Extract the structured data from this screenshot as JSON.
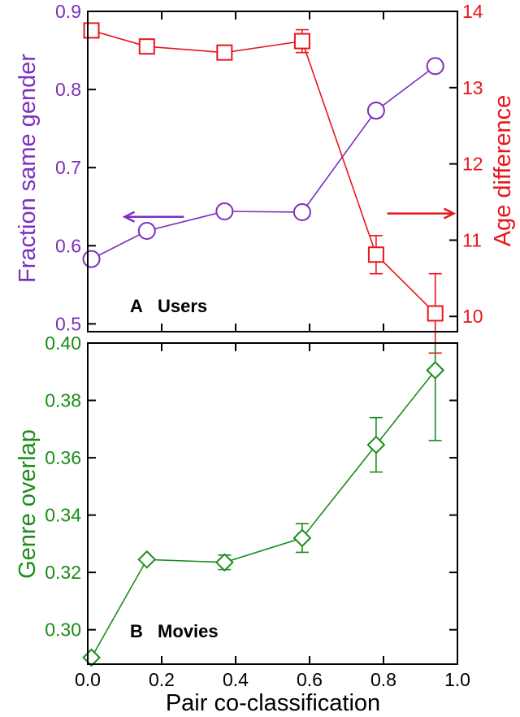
{
  "chart_data": [
    {
      "panel_id": "A",
      "type": "line",
      "panel_label": "A",
      "panel_title": "Users",
      "xlabel": "",
      "xlim": [
        0,
        1
      ],
      "xticks": [
        0.0,
        0.2,
        0.4,
        0.6,
        0.8,
        1.0
      ],
      "grid": false,
      "left_axis": {
        "label": "Fraction same gender",
        "ylim": [
          0.49,
          0.9
        ],
        "ticks": [
          "0.5",
          "0.6",
          "0.7",
          "0.8",
          "0.9"
        ],
        "color": "#7b2fbe"
      },
      "right_axis": {
        "label": "Age difference",
        "ylim": [
          9.8,
          14.0
        ],
        "ticks": [
          "10",
          "11",
          "12",
          "13",
          "14"
        ],
        "color": "#e8161e"
      },
      "series": [
        {
          "axis": "left",
          "marker": "circle",
          "color": "#7b2fbe",
          "x": [
            0.01,
            0.16,
            0.37,
            0.58,
            0.78,
            0.94
          ],
          "y": [
            0.583,
            0.619,
            0.644,
            0.643,
            0.773,
            0.83
          ],
          "err": [
            0,
            0,
            0,
            0,
            0,
            0
          ]
        },
        {
          "axis": "right",
          "marker": "square",
          "color": "#e8161e",
          "x": [
            0.01,
            0.16,
            0.37,
            0.58,
            0.78,
            0.94
          ],
          "y": [
            13.75,
            13.54,
            13.46,
            13.61,
            10.81,
            10.04
          ],
          "err": [
            0.05,
            0.05,
            0.04,
            0.15,
            0.25,
            0.52
          ]
        }
      ],
      "annotations": [
        {
          "type": "arrow",
          "direction": "left",
          "x_from": 0.26,
          "x_to": 0.1,
          "y": 0.637,
          "axis": "left",
          "color": "#7b2fbe"
        },
        {
          "type": "arrow",
          "direction": "right",
          "x_from": 0.81,
          "x_to": 0.99,
          "y": 11.35,
          "axis": "right",
          "color": "#e8161e"
        }
      ]
    },
    {
      "panel_id": "B",
      "type": "line",
      "panel_label": "B",
      "panel_title": "Movies",
      "xlabel": "Pair co-classification",
      "xlim": [
        0,
        1
      ],
      "xticks": [
        "0.0",
        "0.2",
        "0.4",
        "0.6",
        "0.8",
        "1.0"
      ],
      "grid": false,
      "left_axis": {
        "label": "Genre overlap",
        "ylim": [
          0.288,
          0.4
        ],
        "ticks": [
          "0.30",
          "0.32",
          "0.34",
          "0.36",
          "0.38",
          "0.40"
        ],
        "color": "#1a8c1a"
      },
      "series": [
        {
          "axis": "left",
          "marker": "diamond",
          "color": "#1a8c1a",
          "x": [
            0.01,
            0.16,
            0.37,
            0.58,
            0.78,
            0.94
          ],
          "y": [
            0.2903,
            0.3245,
            0.3235,
            0.332,
            0.3645,
            0.3905
          ],
          "err": [
            0,
            0,
            0.0025,
            0.005,
            0.0095,
            0.0245
          ]
        }
      ]
    }
  ]
}
